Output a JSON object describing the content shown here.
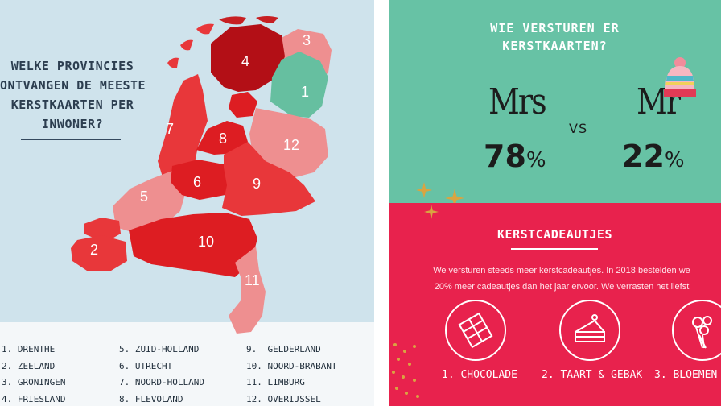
{
  "left": {
    "title_lines": [
      "WELKE PROVINCIES",
      "ONTVANGEN DE MEESTE",
      "KERSTKAARTEN PER",
      "INWONER?"
    ],
    "map_numbers": [
      "1",
      "2",
      "3",
      "4",
      "5",
      "6",
      "7",
      "8",
      "9",
      "10",
      "11",
      "12"
    ],
    "legend_col1": [
      "1. DRENTHE",
      "2. ZEELAND",
      "3. GRONINGEN",
      "4. FRIESLAND"
    ],
    "legend_col2": [
      "5. ZUID-HOLLAND",
      "6. UTRECHT",
      "7. NOORD-HOLLAND",
      "8. FLEVOLAND"
    ],
    "legend_col3": [
      "9.  GELDERLAND",
      "10. NOORD-BRABANT",
      "11. LIMBURG",
      "12. OVERIJSSEL"
    ]
  },
  "right_top": {
    "title_lines": [
      "WIE VERSTUREN ER",
      "KERSTKAARTEN?"
    ],
    "mrs_label": "Mrs",
    "mr_label": "Mr",
    "vs": "VS",
    "mrs_value": "78",
    "mr_value": "22",
    "percent_sign": "%",
    "background_color": "#67c2a5"
  },
  "right_bottom": {
    "title": "KERSTCADEAUTJES",
    "text_lines": [
      "We versturen steeds meer kerstcadeautjes. In 2018 bestelden we",
      "20% meer cadeautjes dan het jaar ervoor. We verrasten het liefst"
    ],
    "items": [
      "1. CHOCOLADE",
      "2. TAART & GEBAK",
      "3. BLOEMEN"
    ],
    "background_color": "#e8224d"
  }
}
